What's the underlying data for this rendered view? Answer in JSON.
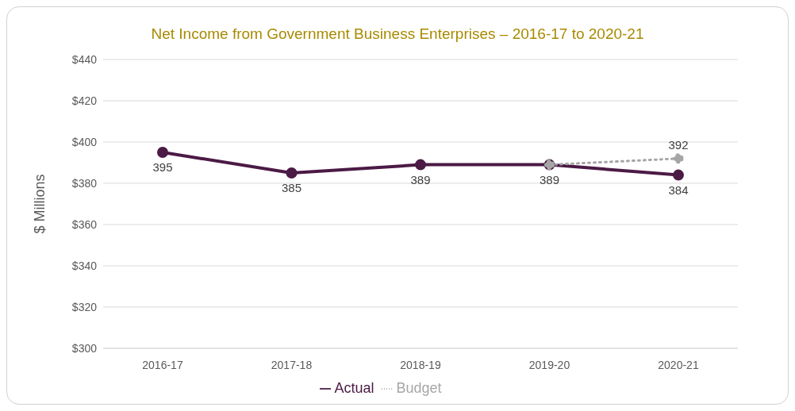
{
  "chart_data": {
    "type": "line",
    "title": "Net Income from Government Business Enterprises – 2016-17 to 2020-21",
    "ylabel": "$ Millions",
    "categories": [
      "2016-17",
      "2017-18",
      "2018-19",
      "2019-20",
      "2020-21"
    ],
    "series": [
      {
        "name": "Actual",
        "color": "#4b1a45",
        "values": [
          395,
          385,
          389,
          389,
          384
        ],
        "value_labels": [
          "395",
          "385",
          "389",
          "389",
          "384"
        ],
        "line_style": "solid"
      },
      {
        "name": "Budget",
        "color": "#a6a6a6",
        "values": [
          null,
          null,
          null,
          389,
          392
        ],
        "value_labels": [
          null,
          null,
          null,
          null,
          "392"
        ],
        "line_style": "dotted"
      }
    ],
    "ylim": [
      300,
      440
    ],
    "yticks": [
      {
        "value": 300,
        "label": "$300"
      },
      {
        "value": 320,
        "label": "$320"
      },
      {
        "value": 340,
        "label": "$340"
      },
      {
        "value": 360,
        "label": "$360"
      },
      {
        "value": 380,
        "label": "$380"
      },
      {
        "value": 400,
        "label": "$400"
      },
      {
        "value": 420,
        "label": "$420"
      },
      {
        "value": 440,
        "label": "$440"
      }
    ],
    "grid": "y",
    "legend": "bottom",
    "marker": "circle"
  }
}
